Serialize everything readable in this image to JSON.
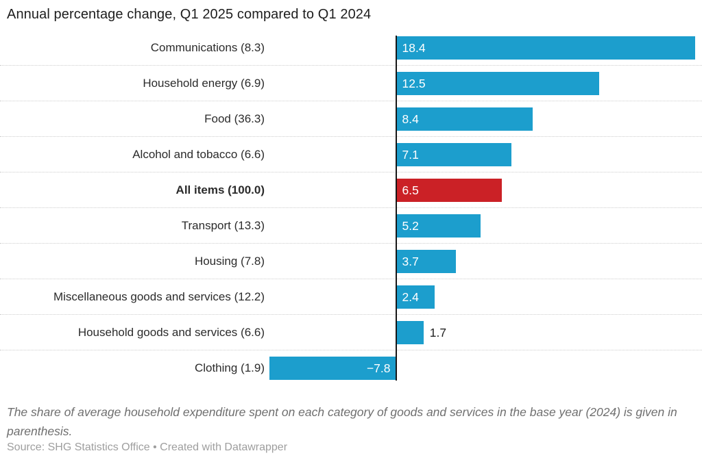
{
  "header": {
    "title": "Annual percentage change, Q1 2025 compared to Q1 2024"
  },
  "footer": {
    "note": "The share of average household expenditure spent on each category of goods and services in the base year (2024) is given in parenthesis.",
    "source": "Source: SHG Statistics Office • Created with Datawrapper"
  },
  "chart_data": {
    "type": "bar",
    "orientation": "horizontal",
    "title": "Annual percentage change, Q1 2025 compared to Q1 2024",
    "categories": [
      "Communications (8.3)",
      "Household energy (6.9)",
      "Food (36.3)",
      "Alcohol and tobacco (6.6)",
      "All items (100.0)",
      "Transport (13.3)",
      "Housing (7.8)",
      "Miscellaneous goods and services (12.2)",
      "Household goods and services (6.6)",
      "Clothing (1.9)"
    ],
    "values": [
      18.4,
      12.5,
      8.4,
      7.1,
      6.5,
      5.2,
      3.7,
      2.4,
      1.7,
      -7.8
    ],
    "value_labels": [
      "18.4",
      "12.5",
      "8.4",
      "7.1",
      "6.5",
      "5.2",
      "3.7",
      "2.4",
      "1.7",
      "−7.8"
    ],
    "highlight_index": 4,
    "highlight_category": "All items (100.0)",
    "bar_color": "#1c9ecd",
    "highlight_color": "#cb2126",
    "value_label_color_inside": "#ffffff",
    "value_label_color_outside": "#222222",
    "xlim": [
      -7.8,
      18.4
    ],
    "baseline": 0,
    "grid": "dotted horizontal row separators",
    "legend": "none",
    "xlabel": "",
    "ylabel": ""
  }
}
